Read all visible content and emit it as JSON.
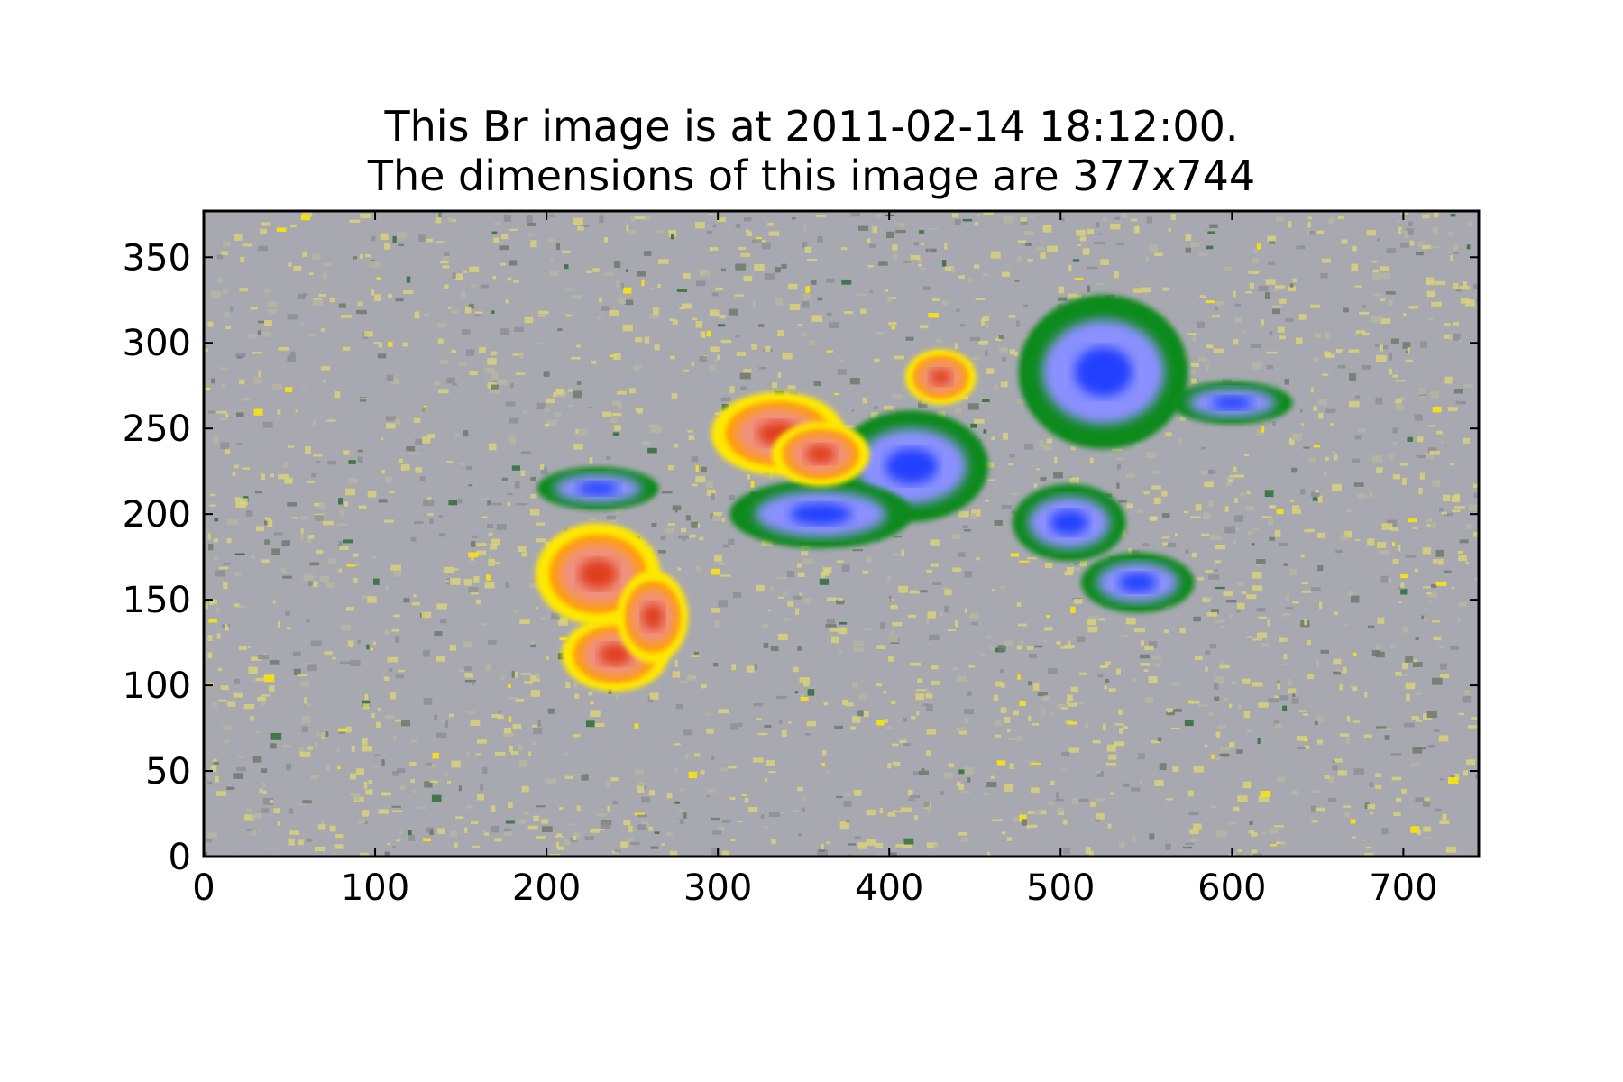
{
  "chart_data": {
    "type": "heatmap",
    "title_line1": "This Br image is at 2011-02-14 18:12:00.",
    "title_line2": "The dimensions of this image are 377x744",
    "xlim": [
      0,
      744
    ],
    "ylim": [
      0,
      377
    ],
    "x_ticks": [
      0,
      100,
      200,
      300,
      400,
      500,
      600,
      700
    ],
    "y_ticks": [
      0,
      50,
      100,
      150,
      200,
      250,
      300,
      350
    ],
    "colors": {
      "background_gray": "#a8a8b0",
      "speckle_yellow": "#d8d27a",
      "positive_yellow": "#ffe800",
      "positive_orange": "#ffa000",
      "positive_red": "#e03c1c",
      "positive_pink": "#f09080",
      "negative_green": "#0a8a1e",
      "negative_light": "#8a90ff",
      "negative_blue": "#2040ff"
    },
    "positive_regions": [
      {
        "x": 230,
        "y": 165,
        "rx": 28,
        "ry": 22
      },
      {
        "x": 240,
        "y": 118,
        "rx": 24,
        "ry": 16
      },
      {
        "x": 262,
        "y": 140,
        "rx": 16,
        "ry": 20
      },
      {
        "x": 335,
        "y": 247,
        "rx": 30,
        "ry": 18
      },
      {
        "x": 360,
        "y": 235,
        "rx": 22,
        "ry": 14
      },
      {
        "x": 430,
        "y": 280,
        "rx": 16,
        "ry": 12
      }
    ],
    "negative_regions": [
      {
        "x": 525,
        "y": 283,
        "rx": 42,
        "ry": 36
      },
      {
        "x": 413,
        "y": 228,
        "rx": 38,
        "ry": 26
      },
      {
        "x": 360,
        "y": 200,
        "rx": 45,
        "ry": 16
      },
      {
        "x": 505,
        "y": 195,
        "rx": 28,
        "ry": 18
      },
      {
        "x": 545,
        "y": 160,
        "rx": 28,
        "ry": 14
      },
      {
        "x": 230,
        "y": 215,
        "rx": 30,
        "ry": 10
      },
      {
        "x": 600,
        "y": 265,
        "rx": 30,
        "ry": 10
      }
    ]
  }
}
